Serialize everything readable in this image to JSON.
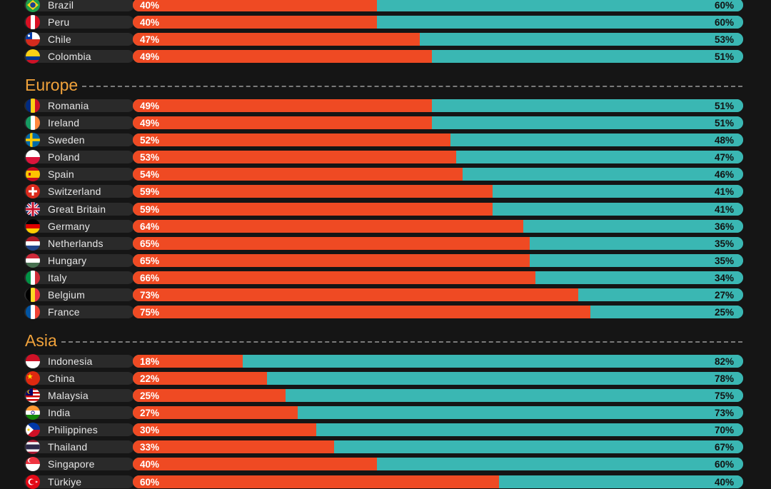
{
  "chart_data": {
    "type": "bar",
    "stacked": true,
    "orientation": "horizontal",
    "series_colors": {
      "series_a": "#ef4a23",
      "series_b": "#3ab7b3"
    },
    "groups": [
      {
        "name": "",
        "rows": [
          {
            "country": "Brazil",
            "flag": "brazil-flag-icon",
            "a": 40,
            "b": 60
          },
          {
            "country": "Peru",
            "flag": "peru-flag-icon",
            "a": 40,
            "b": 60
          },
          {
            "country": "Chile",
            "flag": "chile-flag-icon",
            "a": 47,
            "b": 53
          },
          {
            "country": "Colombia",
            "flag": "colombia-flag-icon",
            "a": 49,
            "b": 51
          }
        ]
      },
      {
        "name": "Europe",
        "rows": [
          {
            "country": "Romania",
            "flag": "romania-flag-icon",
            "a": 49,
            "b": 51
          },
          {
            "country": "Ireland",
            "flag": "ireland-flag-icon",
            "a": 49,
            "b": 51
          },
          {
            "country": "Sweden",
            "flag": "sweden-flag-icon",
            "a": 52,
            "b": 48
          },
          {
            "country": "Poland",
            "flag": "poland-flag-icon",
            "a": 53,
            "b": 47
          },
          {
            "country": "Spain",
            "flag": "spain-flag-icon",
            "a": 54,
            "b": 46
          },
          {
            "country": "Switzerland",
            "flag": "switzerland-flag-icon",
            "a": 59,
            "b": 41
          },
          {
            "country": "Great Britain",
            "flag": "great-britain-flag-icon",
            "a": 59,
            "b": 41
          },
          {
            "country": "Germany",
            "flag": "germany-flag-icon",
            "a": 64,
            "b": 36
          },
          {
            "country": "Netherlands",
            "flag": "netherlands-flag-icon",
            "a": 65,
            "b": 35
          },
          {
            "country": "Hungary",
            "flag": "hungary-flag-icon",
            "a": 65,
            "b": 35
          },
          {
            "country": "Italy",
            "flag": "italy-flag-icon",
            "a": 66,
            "b": 34
          },
          {
            "country": "Belgium",
            "flag": "belgium-flag-icon",
            "a": 73,
            "b": 27
          },
          {
            "country": "France",
            "flag": "france-flag-icon",
            "a": 75,
            "b": 25
          }
        ]
      },
      {
        "name": "Asia",
        "rows": [
          {
            "country": "Indonesia",
            "flag": "indonesia-flag-icon",
            "a": 18,
            "b": 82
          },
          {
            "country": "China",
            "flag": "china-flag-icon",
            "a": 22,
            "b": 78
          },
          {
            "country": "Malaysia",
            "flag": "malaysia-flag-icon",
            "a": 25,
            "b": 75
          },
          {
            "country": "India",
            "flag": "india-flag-icon",
            "a": 27,
            "b": 73
          },
          {
            "country": "Philippines",
            "flag": "philippines-flag-icon",
            "a": 30,
            "b": 70
          },
          {
            "country": "Thailand",
            "flag": "thailand-flag-icon",
            "a": 33,
            "b": 67
          },
          {
            "country": "Singapore",
            "flag": "singapore-flag-icon",
            "a": 40,
            "b": 60
          },
          {
            "country": "Türkiye",
            "flag": "turkiye-flag-icon",
            "a": 60,
            "b": 40
          }
        ]
      }
    ]
  }
}
